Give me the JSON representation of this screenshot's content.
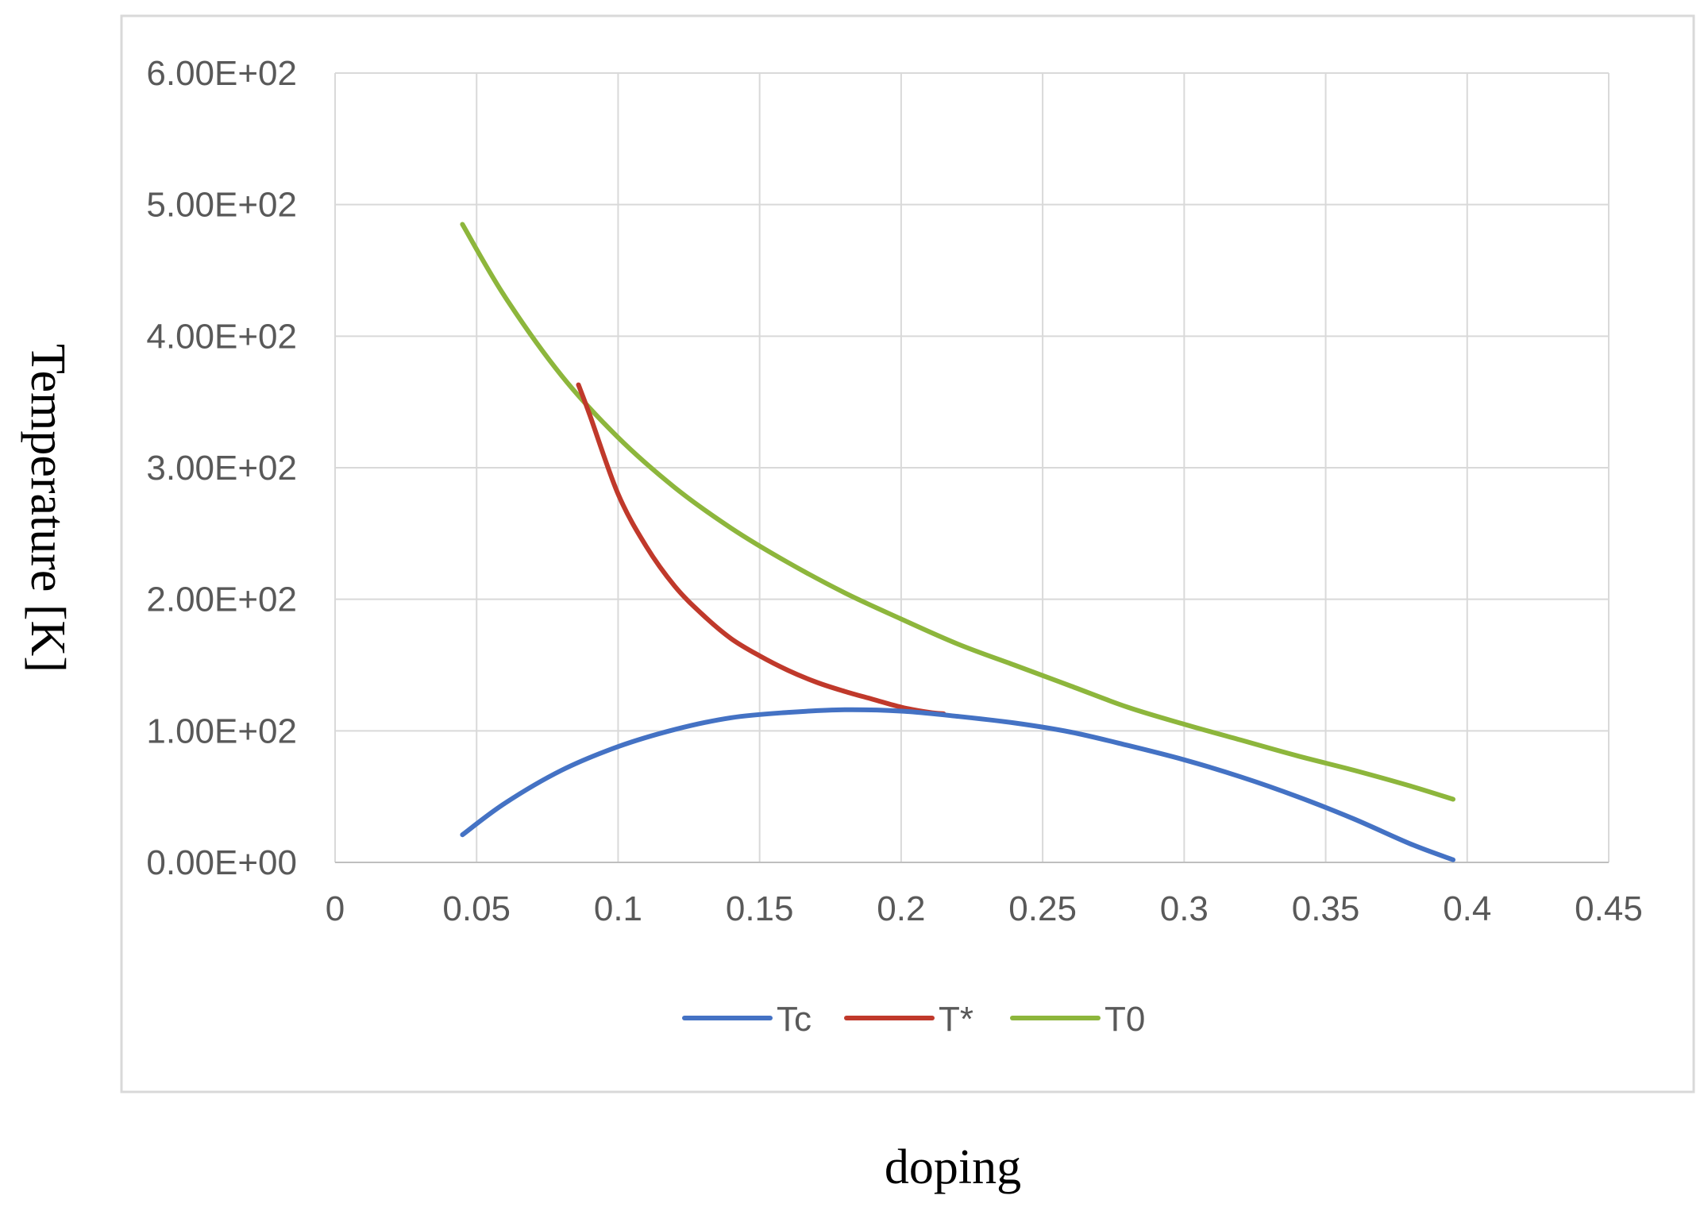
{
  "chart_data": {
    "type": "line",
    "title": "",
    "xlabel": "doping",
    "ylabel": "Temperature [K]",
    "xlim": [
      0,
      0.45
    ],
    "ylim": [
      0,
      600
    ],
    "x_ticks": [
      "0",
      "0.05",
      "0.1",
      "0.15",
      "0.2",
      "0.25",
      "0.3",
      "0.35",
      "0.4",
      "0.45"
    ],
    "y_ticks": [
      "0.00E+00",
      "1.00E+02",
      "2.00E+02",
      "3.00E+02",
      "4.00E+02",
      "5.00E+02",
      "6.00E+02"
    ],
    "grid": true,
    "legend_position": "bottom",
    "series": [
      {
        "name": "Tc",
        "color": "#4472C4",
        "x": [
          0.045,
          0.06,
          0.08,
          0.1,
          0.12,
          0.14,
          0.16,
          0.18,
          0.2,
          0.22,
          0.24,
          0.26,
          0.28,
          0.3,
          0.32,
          0.34,
          0.36,
          0.38,
          0.395
        ],
        "y": [
          21,
          45,
          70,
          88,
          101,
          110,
          114,
          116,
          115,
          111,
          106,
          99,
          89,
          78,
          65,
          50,
          33,
          14,
          2
        ]
      },
      {
        "name": "T*",
        "color": "#C0392B",
        "x": [
          0.086,
          0.09,
          0.1,
          0.11,
          0.12,
          0.13,
          0.14,
          0.15,
          0.16,
          0.17,
          0.18,
          0.19,
          0.2,
          0.21,
          0.215
        ],
        "y": [
          363,
          340,
          280,
          240,
          210,
          188,
          170,
          157,
          146,
          137,
          130,
          124,
          118,
          114,
          113
        ]
      },
      {
        "name": "T0",
        "color": "#8DB63C",
        "x": [
          0.045,
          0.06,
          0.08,
          0.1,
          0.12,
          0.14,
          0.16,
          0.18,
          0.2,
          0.22,
          0.24,
          0.26,
          0.28,
          0.3,
          0.32,
          0.34,
          0.36,
          0.38,
          0.395
        ],
        "y": [
          485,
          430,
          370,
          323,
          285,
          254,
          228,
          205,
          185,
          166,
          150,
          134,
          118,
          105,
          93,
          81,
          70,
          58,
          48
        ]
      }
    ]
  }
}
